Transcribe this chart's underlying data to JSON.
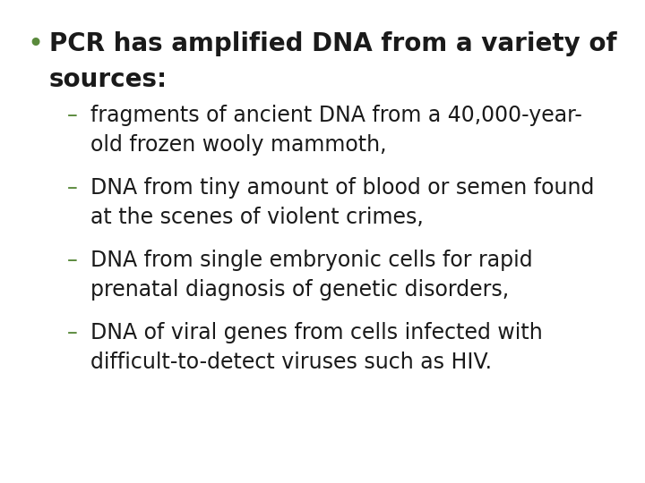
{
  "background_color": "#ffffff",
  "bullet_color": "#5a8a3c",
  "text_color": "#1a1a1a",
  "bullet_text_line1": "PCR has amplified DNA from a variety of",
  "bullet_text_line2": "sources:",
  "bullet_fontsize": 20,
  "sub_items": [
    [
      "– fragments of ancient DNA from a 40,000-year-",
      "   old frozen wooly mammoth,"
    ],
    [
      "– DNA from tiny amount of blood or semen found",
      "   at the scenes of violent crimes,"
    ],
    [
      "– DNA from single embryonic cells for rapid",
      "   prenatal diagnosis of genetic disorders,"
    ],
    [
      "– DNA of viral genes from cells infected with",
      "   difficult-to-detect viruses such as HIV."
    ]
  ],
  "sub_fontsize": 17,
  "dash_color": "#5a8a3c",
  "sub_text_color": "#1a1a1a"
}
